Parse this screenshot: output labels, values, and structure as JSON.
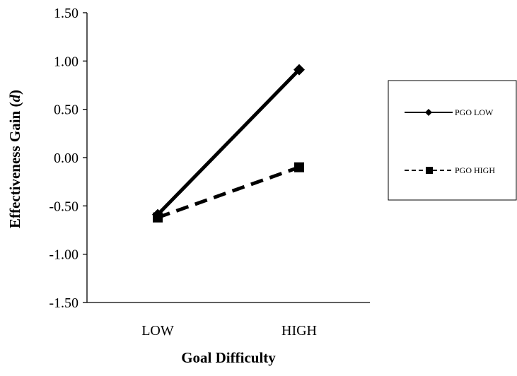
{
  "chart_data": {
    "type": "line",
    "title": "",
    "xlabel": "Goal Difficulty",
    "ylabel_main": "Effectiveness  Gain (",
    "ylabel_italic": "d",
    "ylabel_close": ")",
    "categories": [
      "LOW",
      "HIGH"
    ],
    "ylim": [
      -1.5,
      1.5
    ],
    "yticks": [
      1.5,
      1.0,
      0.5,
      0.0,
      -0.5,
      -1.0,
      -1.5
    ],
    "ytick_labels": [
      "1.50",
      "1.00",
      "0.50",
      "0.00",
      "-0.50",
      "-1.00",
      "-1.50"
    ],
    "grid": false,
    "legend_position": "right",
    "series": [
      {
        "name": "PGO LOW",
        "values": [
          -0.59,
          0.91
        ],
        "line_style": "solid",
        "marker": "diamond",
        "color": "#000000"
      },
      {
        "name": "PGO HIGH",
        "values": [
          -0.62,
          -0.1
        ],
        "line_style": "dashed",
        "marker": "square",
        "color": "#000000"
      }
    ]
  }
}
